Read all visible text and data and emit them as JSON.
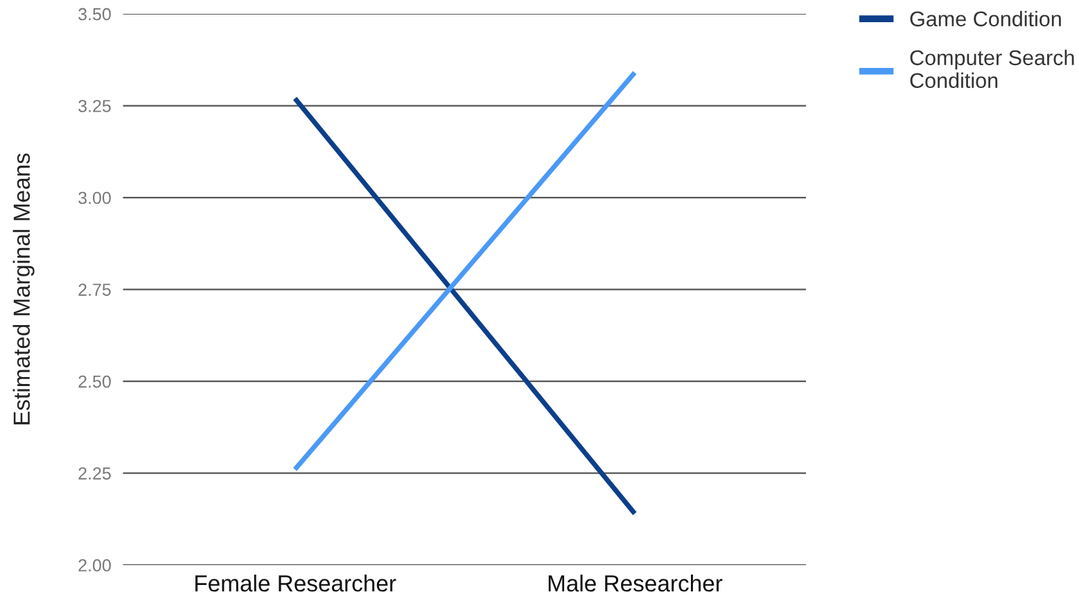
{
  "chart_data": {
    "type": "line",
    "ylabel": "Estimated Marginal Means",
    "categories": [
      "Female Researcher",
      "Male Researcher"
    ],
    "series": [
      {
        "name": "Game Condition",
        "color": "#0d3f8a",
        "values": [
          3.27,
          2.14
        ]
      },
      {
        "name": "Computer Search Condition",
        "color": "#4a9af5",
        "values": [
          2.26,
          3.34
        ]
      }
    ],
    "ylim": [
      2.0,
      3.5
    ],
    "yticks": [
      {
        "value": 2.0,
        "label": "2.00"
      },
      {
        "value": 2.25,
        "label": "2.25"
      },
      {
        "value": 2.5,
        "label": "2.50"
      },
      {
        "value": 2.75,
        "label": "2.75"
      },
      {
        "value": 3.0,
        "label": "3.00"
      },
      {
        "value": 3.25,
        "label": "3.25"
      },
      {
        "value": 3.5,
        "label": "3.50"
      }
    ],
    "grid": "y",
    "legend": "top right",
    "marker": "none",
    "line_style": "solid"
  }
}
